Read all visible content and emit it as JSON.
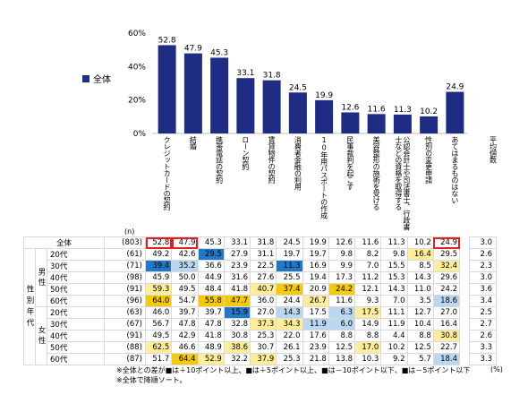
{
  "legend": {
    "label": "全体",
    "color": "#1f2c84"
  },
  "chart_data": {
    "type": "bar",
    "title": "",
    "categories": [
      "クレジットカードの契約",
      "結婚",
      "携帯電話の契約",
      "ローン契約",
      "賃貸物件の契約",
      "消費者金融の利用",
      "10年用パスポートの作成",
      "民事裁判を起こす",
      "美容整形の施術を受ける",
      "公認会計士や司法書士、行政書士などの資格を取得する",
      "性別の変更申請",
      "あてはまるものはない"
    ],
    "values": [
      52.8,
      47.9,
      45.3,
      33.1,
      31.8,
      24.5,
      19.9,
      12.6,
      11.6,
      11.3,
      10.2,
      24.9
    ],
    "yticks": [
      "0%",
      "20%",
      "40%",
      "60%"
    ],
    "ylim": [
      0,
      60
    ]
  },
  "table": {
    "n_label": "(n)",
    "avg_header": "平均個数",
    "side_label": "性別年代",
    "rows": [
      {
        "group": "",
        "label": "全体",
        "n": "(803)",
        "vals": [
          "52.8",
          "47.9",
          "45.3",
          "33.1",
          "31.8",
          "24.5",
          "19.9",
          "12.6",
          "11.6",
          "11.3",
          "10.2",
          "24.9"
        ],
        "avg": "3.0",
        "hl": [
          "",
          "",
          "",
          "",
          "",
          "",
          "",
          "",
          "",
          "",
          "",
          ""
        ]
      },
      {
        "group": "男性",
        "label": "20代",
        "n": "(61)",
        "vals": [
          "49.2",
          "42.6",
          "29.5",
          "27.9",
          "31.1",
          "19.7",
          "19.7",
          "9.8",
          "8.2",
          "9.8",
          "16.4",
          "29.5"
        ],
        "avg": "2.6",
        "hl": [
          "",
          "",
          "db",
          "",
          "",
          "",
          "",
          "",
          "",
          "",
          "ly",
          ""
        ]
      },
      {
        "group": "男性",
        "label": "30代",
        "n": "(71)",
        "vals": [
          "39.4",
          "35.2",
          "36.6",
          "23.9",
          "22.5",
          "11.3",
          "16.9",
          "9.9",
          "7.0",
          "15.5",
          "8.5",
          "32.4"
        ],
        "avg": "2.3",
        "hl": [
          "db",
          "lb2",
          "",
          "",
          "",
          "db",
          "",
          "",
          "",
          "",
          "",
          "ly"
        ]
      },
      {
        "group": "男性",
        "label": "40代",
        "n": "(98)",
        "vals": [
          "45.9",
          "50.0",
          "44.9",
          "31.6",
          "27.6",
          "25.5",
          "19.4",
          "17.3",
          "11.2",
          "15.3",
          "14.3",
          "29.6"
        ],
        "avg": "3.0",
        "hl": [
          "",
          "",
          "",
          "",
          "",
          "",
          "",
          "",
          "",
          "",
          "",
          ""
        ]
      },
      {
        "group": "男性",
        "label": "50代",
        "n": "(91)",
        "vals": [
          "59.3",
          "49.5",
          "48.4",
          "41.8",
          "40.7",
          "37.4",
          "20.9",
          "24.2",
          "12.1",
          "14.3",
          "11.0",
          "24.2"
        ],
        "avg": "3.6",
        "hl": [
          "ly",
          "",
          "",
          "",
          "ly",
          "dy",
          "",
          "dy",
          "",
          "",
          "",
          ""
        ]
      },
      {
        "group": "男性",
        "label": "60代",
        "n": "(96)",
        "vals": [
          "64.0",
          "54.7",
          "55.8",
          "47.7",
          "36.0",
          "24.4",
          "26.7",
          "11.6",
          "9.3",
          "7.0",
          "3.5",
          "18.6"
        ],
        "avg": "3.4",
        "hl": [
          "dy",
          "",
          "dy",
          "dy",
          "",
          "",
          "ly",
          "",
          "",
          "",
          "",
          "lb2"
        ]
      },
      {
        "group": "女性",
        "label": "20代",
        "n": "(63)",
        "vals": [
          "46.0",
          "39.7",
          "39.7",
          "15.9",
          "27.0",
          "14.3",
          "17.5",
          "6.3",
          "17.5",
          "11.1",
          "12.7",
          "27.0"
        ],
        "avg": "2.5",
        "hl": [
          "",
          "",
          "",
          "db",
          "",
          "lb2",
          "",
          "lb2",
          "ly",
          "",
          "",
          ""
        ]
      },
      {
        "group": "女性",
        "label": "30代",
        "n": "(67)",
        "vals": [
          "56.7",
          "47.8",
          "47.8",
          "32.8",
          "37.3",
          "34.3",
          "11.9",
          "6.0",
          "14.9",
          "11.9",
          "10.4",
          "16.4"
        ],
        "avg": "2.7",
        "hl": [
          "",
          "",
          "",
          "",
          "ly",
          "ly",
          "lb2",
          "lb2",
          "",
          "",
          "",
          ""
        ]
      },
      {
        "group": "女性",
        "label": "40代",
        "n": "(91)",
        "vals": [
          "49.5",
          "42.9",
          "41.8",
          "30.8",
          "25.3",
          "22.0",
          "17.6",
          "8.8",
          "8.8",
          "4.4",
          "8.8",
          "30.8"
        ],
        "avg": "2.6",
        "hl": [
          "",
          "",
          "",
          "",
          "",
          "",
          "",
          "",
          "",
          "",
          "",
          "ly"
        ]
      },
      {
        "group": "女性",
        "label": "50代",
        "n": "(88)",
        "vals": [
          "62.5",
          "46.6",
          "48.9",
          "38.6",
          "30.7",
          "26.1",
          "23.9",
          "12.5",
          "17.0",
          "10.2",
          "12.5",
          "22.7"
        ],
        "avg": "3.3",
        "hl": [
          "ly",
          "",
          "",
          "ly",
          "",
          "",
          "",
          "",
          "ly",
          "",
          "",
          ""
        ]
      },
      {
        "group": "女性",
        "label": "60代",
        "n": "(87)",
        "vals": [
          "51.7",
          "64.4",
          "52.9",
          "32.2",
          "37.9",
          "25.3",
          "21.8",
          "13.8",
          "10.3",
          "9.2",
          "5.7",
          "18.4"
        ],
        "avg": "3.3",
        "hl": [
          "",
          "dy",
          "ly",
          "",
          "ly",
          "",
          "",
          "",
          "",
          "",
          "",
          "lb2"
        ]
      }
    ]
  },
  "notes": {
    "line1": "※全体との差が■は＋10ポイント以上、■は＋5ポイント以上、■は－10ポイント以下、■は－5ポイント以下",
    "line2": "※全体で降順ソート。",
    "pct": "(%)"
  }
}
